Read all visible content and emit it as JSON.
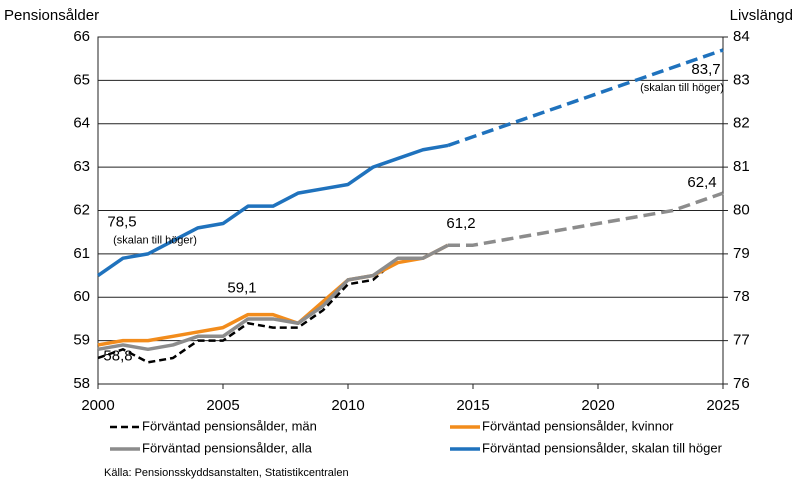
{
  "chart_data": {
    "type": "line",
    "y_axis_label": "Pensionsålder",
    "y2_axis_label": "Livslängd",
    "source": "Källa: Pensionsskyddsanstalten, Statistikcentralen",
    "annotations": [
      "(skalan till höger)",
      "(skalan till höger)"
    ],
    "x": [
      2000,
      2001,
      2002,
      2003,
      2004,
      2005,
      2006,
      2007,
      2008,
      2009,
      2010,
      2011,
      2012,
      2013,
      2014,
      2015,
      2016,
      2017,
      2018,
      2019,
      2020,
      2021,
      2022,
      2023,
      2024,
      2025
    ],
    "xlim": [
      2000,
      2025
    ],
    "xticks": [
      2000,
      2005,
      2010,
      2015,
      2020,
      2025
    ],
    "ylim": [
      58,
      66
    ],
    "yticks": [
      58,
      59,
      60,
      61,
      62,
      63,
      64,
      65,
      66
    ],
    "y2lim": [
      76,
      84
    ],
    "y2ticks": [
      76,
      77,
      78,
      79,
      80,
      81,
      82,
      83,
      84
    ],
    "grid": true,
    "dashed_from": 2014,
    "series": [
      {
        "name": "Förväntad pensionsålder, män",
        "color": "#000000",
        "style": "dashed",
        "values": [
          58.6,
          58.8,
          58.5,
          58.6,
          59.0,
          59.0,
          59.4,
          59.3,
          59.3,
          59.7,
          60.3,
          60.4,
          60.9,
          60.9,
          null,
          null,
          null,
          null,
          null,
          null,
          null,
          null,
          null,
          null,
          null,
          null
        ]
      },
      {
        "name": "Förväntad pensionsålder, kvinnor",
        "color": "#f28c1c",
        "values": [
          58.9,
          59.0,
          59.0,
          59.1,
          59.2,
          59.3,
          59.6,
          59.6,
          59.4,
          59.9,
          60.4,
          60.5,
          60.8,
          60.9,
          61.2,
          null,
          null,
          null,
          null,
          null,
          null,
          null,
          null,
          null,
          null,
          null
        ]
      },
      {
        "name": "Förväntad pensionsålder, alla",
        "color": "#8c8c8c",
        "values": [
          58.8,
          58.9,
          58.8,
          58.9,
          59.1,
          59.1,
          59.5,
          59.5,
          59.4,
          59.8,
          60.4,
          60.5,
          60.9,
          60.9,
          61.2,
          61.2,
          61.3,
          61.4,
          61.5,
          61.6,
          61.7,
          61.8,
          61.9,
          62.0,
          62.2,
          62.4
        ],
        "value_labels": [
          "58,8",
          null,
          null,
          null,
          null,
          "59,1",
          null,
          null,
          null,
          null,
          null,
          null,
          null,
          null,
          "61,2",
          null,
          null,
          null,
          null,
          null,
          null,
          null,
          null,
          null,
          null,
          "62,4"
        ]
      },
      {
        "name": "Förväntad pensionsålder, skalan till höger",
        "color": "#1f72bd",
        "axis": "y2",
        "values": [
          78.5,
          78.9,
          79.0,
          79.3,
          79.6,
          79.7,
          80.1,
          80.1,
          80.4,
          80.5,
          80.6,
          81.0,
          81.2,
          81.4,
          81.5,
          81.7,
          81.9,
          82.1,
          82.3,
          82.5,
          82.7,
          82.9,
          83.1,
          83.3,
          83.5,
          83.7
        ],
        "value_labels": [
          "78,5",
          null,
          null,
          null,
          null,
          null,
          null,
          null,
          null,
          null,
          null,
          null,
          null,
          null,
          null,
          null,
          null,
          null,
          null,
          null,
          null,
          null,
          null,
          null,
          null,
          "83,7"
        ]
      }
    ]
  }
}
